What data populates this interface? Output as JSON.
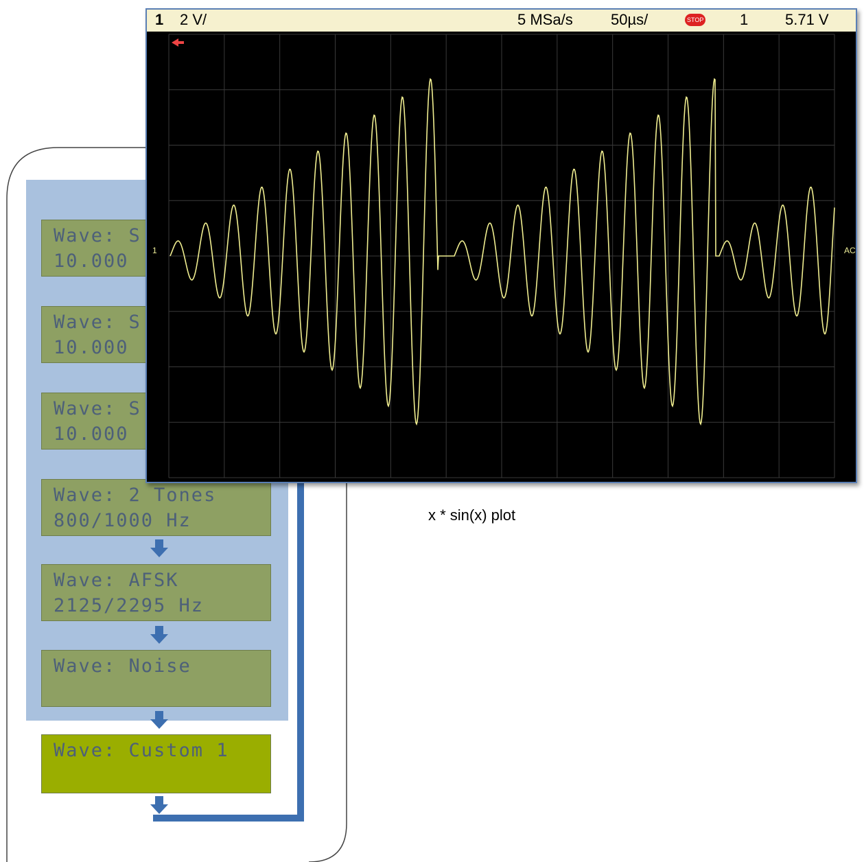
{
  "scope": {
    "channel": "1",
    "vdiv": "2 V/",
    "rate": "5 MSa/s",
    "tdiv": "50µs/",
    "stop": "STOP",
    "trigger": "1",
    "level": "5.71 V",
    "marker": "1",
    "coupling": "AC"
  },
  "screens": [
    {
      "line1": "Wave: S",
      "line2": "10.000"
    },
    {
      "line1": "Wave: S",
      "line2": "10.000"
    },
    {
      "line1": "Wave: S",
      "line2": "10.000"
    },
    {
      "line1": "Wave: 2 Tones",
      "line2": "800/1000 Hz"
    },
    {
      "line1": "Wave: AFSK",
      "line2": "2125/2295 Hz"
    },
    {
      "line1": "Wave: Noise",
      "line2": ""
    }
  ],
  "custom": {
    "line1": "Wave: Custom 1"
  },
  "caption": "x * sin(x) plot"
}
